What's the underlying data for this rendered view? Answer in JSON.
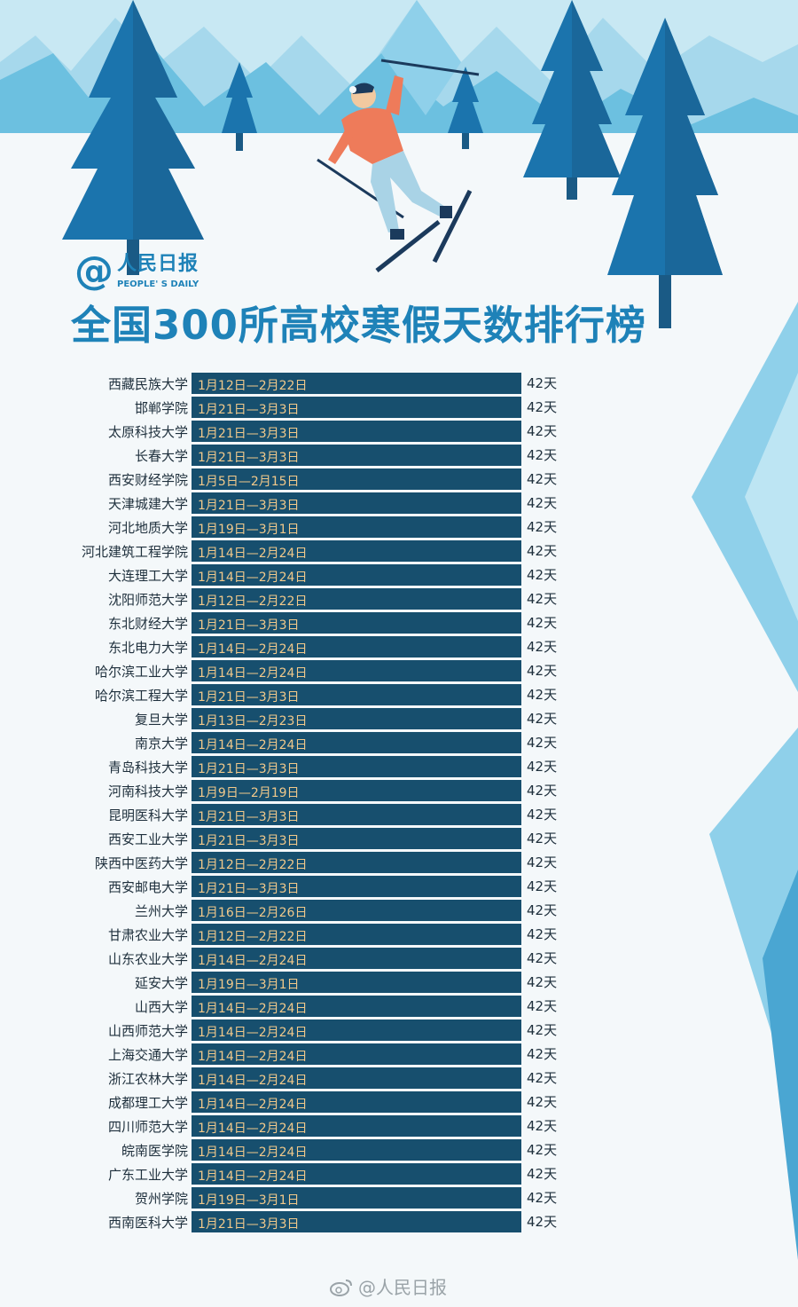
{
  "brand": {
    "at": "@",
    "name_cn": "人民日报",
    "name_en": "PEOPLE' S DAILY"
  },
  "title": "全国300所高校寒假天数排行榜",
  "footer": {
    "text": "@人民日报",
    "icon": "weibo-icon"
  },
  "colors": {
    "bar": "#174f6e",
    "bar_text": "#f1c98b",
    "title": "#1e82b8",
    "sky": "#bfe4f1",
    "mountain": "#6bbedf",
    "tree": "#1b74ad"
  },
  "chart_data": {
    "type": "bar",
    "orientation": "horizontal",
    "title": "全国300所高校寒假天数排行榜",
    "unit": "天",
    "xlim": [
      0,
      42
    ],
    "rows": [
      {
        "name": "西藏民族大学",
        "range": "1月12日—2月22日",
        "days": 42,
        "days_label": "42天"
      },
      {
        "name": "邯郸学院",
        "range": "1月21日—3月3日",
        "days": 42,
        "days_label": "42天"
      },
      {
        "name": "太原科技大学",
        "range": "1月21日—3月3日",
        "days": 42,
        "days_label": "42天"
      },
      {
        "name": "长春大学",
        "range": "1月21日—3月3日",
        "days": 42,
        "days_label": "42天"
      },
      {
        "name": "西安财经学院",
        "range": "1月5日—2月15日",
        "days": 42,
        "days_label": "42天"
      },
      {
        "name": "天津城建大学",
        "range": "1月21日—3月3日",
        "days": 42,
        "days_label": "42天"
      },
      {
        "name": "河北地质大学",
        "range": "1月19日—3月1日",
        "days": 42,
        "days_label": "42天"
      },
      {
        "name": "河北建筑工程学院",
        "range": "1月14日—2月24日",
        "days": 42,
        "days_label": "42天"
      },
      {
        "name": "大连理工大学",
        "range": "1月14日—2月24日",
        "days": 42,
        "days_label": "42天"
      },
      {
        "name": "沈阳师范大学",
        "range": "1月12日—2月22日",
        "days": 42,
        "days_label": "42天"
      },
      {
        "name": "东北财经大学",
        "range": "1月21日—3月3日",
        "days": 42,
        "days_label": "42天"
      },
      {
        "name": "东北电力大学",
        "range": "1月14日—2月24日",
        "days": 42,
        "days_label": "42天"
      },
      {
        "name": "哈尔滨工业大学",
        "range": "1月14日—2月24日",
        "days": 42,
        "days_label": "42天"
      },
      {
        "name": "哈尔滨工程大学",
        "range": "1月21日—3月3日",
        "days": 42,
        "days_label": "42天"
      },
      {
        "name": "复旦大学",
        "range": "1月13日—2月23日",
        "days": 42,
        "days_label": "42天"
      },
      {
        "name": "南京大学",
        "range": "1月14日—2月24日",
        "days": 42,
        "days_label": "42天"
      },
      {
        "name": "青岛科技大学",
        "range": "1月21日—3月3日",
        "days": 42,
        "days_label": "42天"
      },
      {
        "name": "河南科技大学",
        "range": "1月9日—2月19日",
        "days": 42,
        "days_label": "42天"
      },
      {
        "name": "昆明医科大学",
        "range": "1月21日—3月3日",
        "days": 42,
        "days_label": "42天"
      },
      {
        "name": "西安工业大学",
        "range": "1月21日—3月3日",
        "days": 42,
        "days_label": "42天"
      },
      {
        "name": "陕西中医药大学",
        "range": "1月12日—2月22日",
        "days": 42,
        "days_label": "42天"
      },
      {
        "name": "西安邮电大学",
        "range": "1月21日—3月3日",
        "days": 42,
        "days_label": "42天"
      },
      {
        "name": "兰州大学",
        "range": "1月16日—2月26日",
        "days": 42,
        "days_label": "42天"
      },
      {
        "name": "甘肃农业大学",
        "range": "1月12日—2月22日",
        "days": 42,
        "days_label": "42天"
      },
      {
        "name": "山东农业大学",
        "range": "1月14日—2月24日",
        "days": 42,
        "days_label": "42天"
      },
      {
        "name": "延安大学",
        "range": "1月19日—3月1日",
        "days": 42,
        "days_label": "42天"
      },
      {
        "name": "山西大学",
        "range": "1月14日—2月24日",
        "days": 42,
        "days_label": "42天"
      },
      {
        "name": "山西师范大学",
        "range": "1月14日—2月24日",
        "days": 42,
        "days_label": "42天"
      },
      {
        "name": "上海交通大学",
        "range": "1月14日—2月24日",
        "days": 42,
        "days_label": "42天"
      },
      {
        "name": "浙江农林大学",
        "range": "1月14日—2月24日",
        "days": 42,
        "days_label": "42天"
      },
      {
        "name": "成都理工大学",
        "range": "1月14日—2月24日",
        "days": 42,
        "days_label": "42天"
      },
      {
        "name": "四川师范大学",
        "range": "1月14日—2月24日",
        "days": 42,
        "days_label": "42天"
      },
      {
        "name": "皖南医学院",
        "range": "1月14日—2月24日",
        "days": 42,
        "days_label": "42天"
      },
      {
        "name": "广东工业大学",
        "range": "1月14日—2月24日",
        "days": 42,
        "days_label": "42天"
      },
      {
        "name": "贺州学院",
        "range": "1月19日—3月1日",
        "days": 42,
        "days_label": "42天"
      },
      {
        "name": "西南医科大学",
        "range": "1月21日—3月3日",
        "days": 42,
        "days_label": "42天"
      }
    ]
  }
}
